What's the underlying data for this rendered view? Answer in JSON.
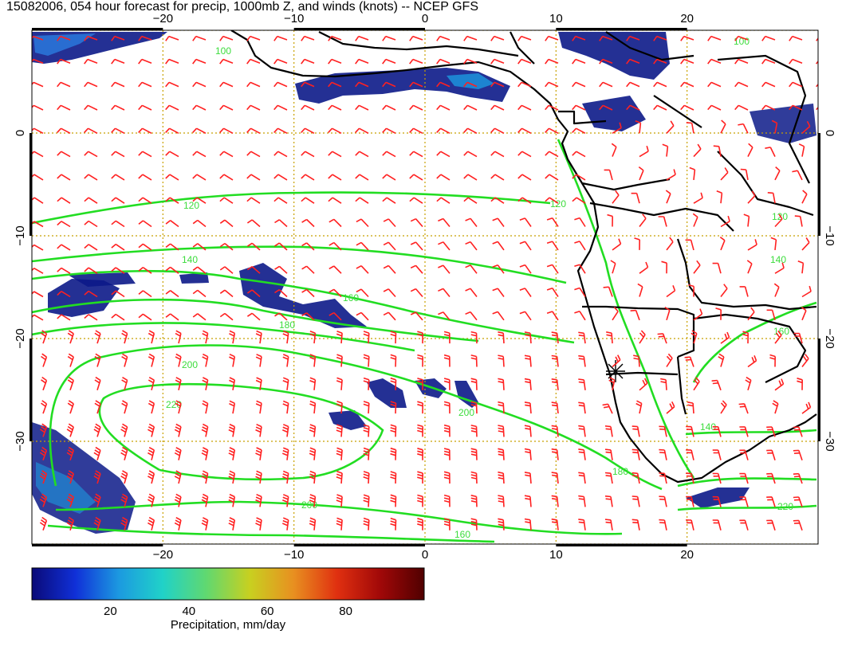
{
  "title": "15082006, 054 hour forecast for precip, 1000mb Z, and winds (knots) -- NCEP GFS",
  "map": {
    "lon_range": [
      -30,
      30
    ],
    "lat_range": [
      -40,
      10
    ],
    "lon_ticks": [
      {
        "value": -20,
        "label": "−20"
      },
      {
        "value": -10,
        "label": "−10"
      },
      {
        "value": 0,
        "label": "0"
      },
      {
        "value": 10,
        "label": "10"
      },
      {
        "value": 20,
        "label": "20"
      }
    ],
    "lat_ticks": [
      {
        "value": 0,
        "label": "0"
      },
      {
        "value": -10,
        "label": "−10"
      },
      {
        "value": -20,
        "label": "−20"
      },
      {
        "value": -30,
        "label": "−30"
      }
    ],
    "grid": "dotted",
    "colors": {
      "contour": "#22dd22",
      "wind_barbs": "#ff2020",
      "coast": "#000000",
      "grid": "#c8a000"
    }
  },
  "contours": [
    {
      "level": "100",
      "label": "100"
    },
    {
      "level": "120",
      "label": "120"
    },
    {
      "level": "140",
      "label": "140"
    },
    {
      "level": "160",
      "label": "160"
    },
    {
      "level": "180",
      "label": "180"
    },
    {
      "level": "200",
      "label": "200"
    },
    {
      "level": "220",
      "label": "220"
    }
  ],
  "colorbar": {
    "label": "Precipitation, mm/day",
    "ticks": [
      {
        "value": 20,
        "label": "20"
      },
      {
        "value": 40,
        "label": "40"
      },
      {
        "value": 60,
        "label": "60"
      },
      {
        "value": 80,
        "label": "80"
      }
    ],
    "range": [
      0,
      100
    ],
    "colors": [
      "#0a0a78",
      "#1030d8",
      "#1c9ae0",
      "#20d2c8",
      "#60d870",
      "#c8d020",
      "#e89020",
      "#e03010",
      "#a00808",
      "#500000"
    ]
  }
}
